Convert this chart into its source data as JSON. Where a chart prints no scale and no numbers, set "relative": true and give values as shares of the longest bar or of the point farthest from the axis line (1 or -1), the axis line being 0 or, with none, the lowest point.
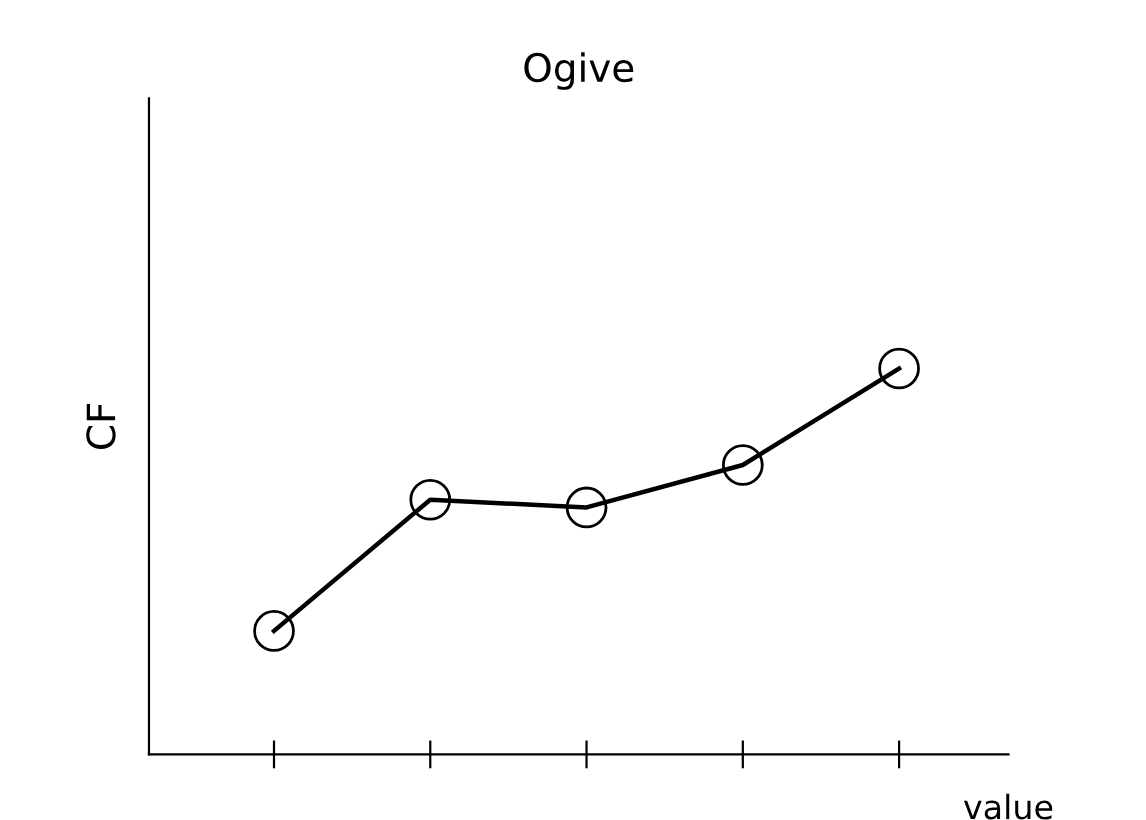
{
  "chart_data": {
    "type": "line",
    "title": "Ogive",
    "xlabel": "value",
    "ylabel": "CF",
    "relative": true,
    "categories": [
      null,
      null,
      null,
      null,
      null
    ],
    "series": [
      {
        "color": "#000000",
        "values": [
          0.32,
          0.66,
          0.64,
          0.75,
          1.0
        ]
      }
    ],
    "marker": "circle",
    "line_style": "solid",
    "grid": false,
    "legend": false
  }
}
